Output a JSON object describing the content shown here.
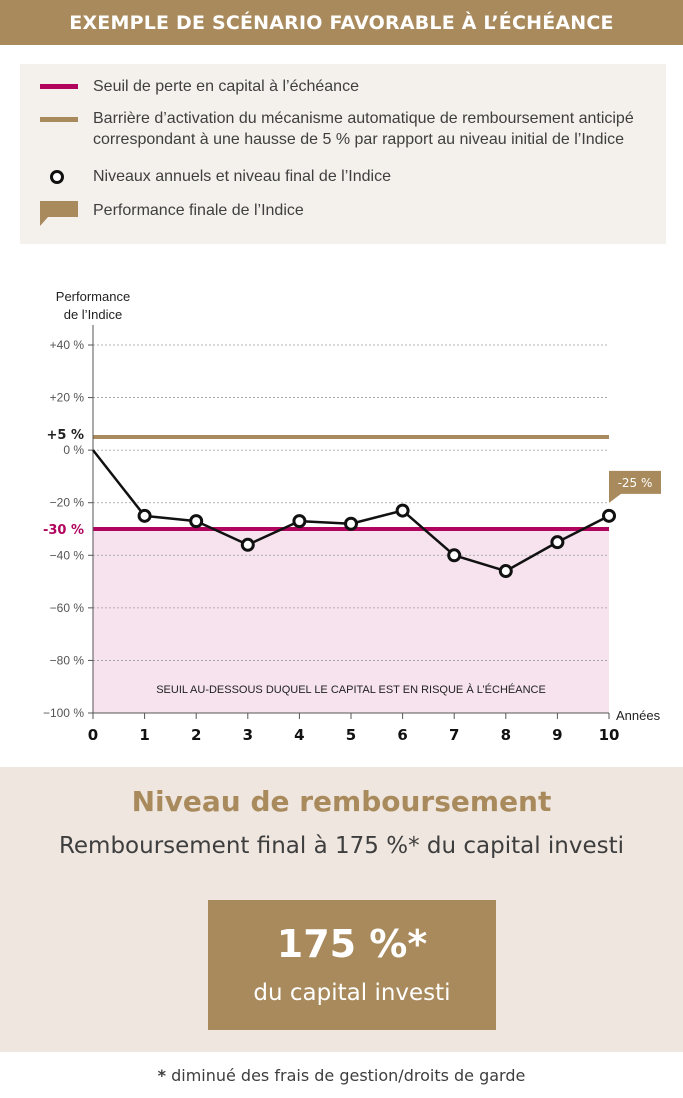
{
  "header": {
    "title": "EXEMPLE DE SCÉNARIO FAVORABLE À L’ÉCHÉANCE"
  },
  "legend": {
    "items": [
      {
        "label": "Seuil de perte en capital à l’échéance",
        "icon": "magenta-line-icon"
      },
      {
        "label": "Barrière d’activation du mécanisme automatique de remboursement anticipé correspondant à une hausse de 5 % par rapport au niveau initial de l’Indice",
        "icon": "gold-line-icon"
      },
      {
        "label": "Niveaux annuels et niveau final de l’Indice",
        "icon": "circle-marker-icon"
      },
      {
        "label": "Performance finale de l’Indice",
        "icon": "gold-callout-icon"
      }
    ]
  },
  "colors": {
    "brand": "#a98a5c",
    "threshold": "#b0045e",
    "risk_zone": "#f6e3ee",
    "line": "#111111",
    "panel": "#f4f0eb",
    "bottom_panel": "#eee6df"
  },
  "chart_data": {
    "type": "line",
    "ylabel_line1": "Performance",
    "ylabel_line2": "de l’Indice",
    "xlabel": "Années",
    "ylim": [
      -100,
      40
    ],
    "xlim": [
      0,
      10
    ],
    "yticks": [
      40,
      20,
      0,
      -20,
      -40,
      -60,
      -80,
      -100
    ],
    "ytick_labels": [
      "+40 %",
      "+20 %",
      "0 %",
      "−20 %",
      "−40 %",
      "−60 %",
      "−80 %",
      "−100 %"
    ],
    "x": [
      0,
      1,
      2,
      3,
      4,
      5,
      6,
      7,
      8,
      9,
      10
    ],
    "values": [
      0,
      -25,
      -27,
      -36,
      -27,
      -28,
      -23,
      -40,
      -46,
      -35,
      -25
    ],
    "grid": true,
    "barrier_value": 5,
    "barrier_label": "+5 %",
    "threshold_value": -30,
    "threshold_label": "-30 %",
    "risk_zone_label": "SEUIL AU-DESSOUS DUQUEL LE CAPITAL EST EN RISQUE À L’ÉCHÉANCE",
    "final_label": "-25 %"
  },
  "result": {
    "title": "Niveau de remboursement",
    "subtitle": "Remboursement final à 175 %* du capital investi",
    "value": "175 %*",
    "value_label": "du capital investi"
  },
  "footnote": {
    "star": "*",
    "text": " diminué des frais de gestion/droits de garde"
  }
}
